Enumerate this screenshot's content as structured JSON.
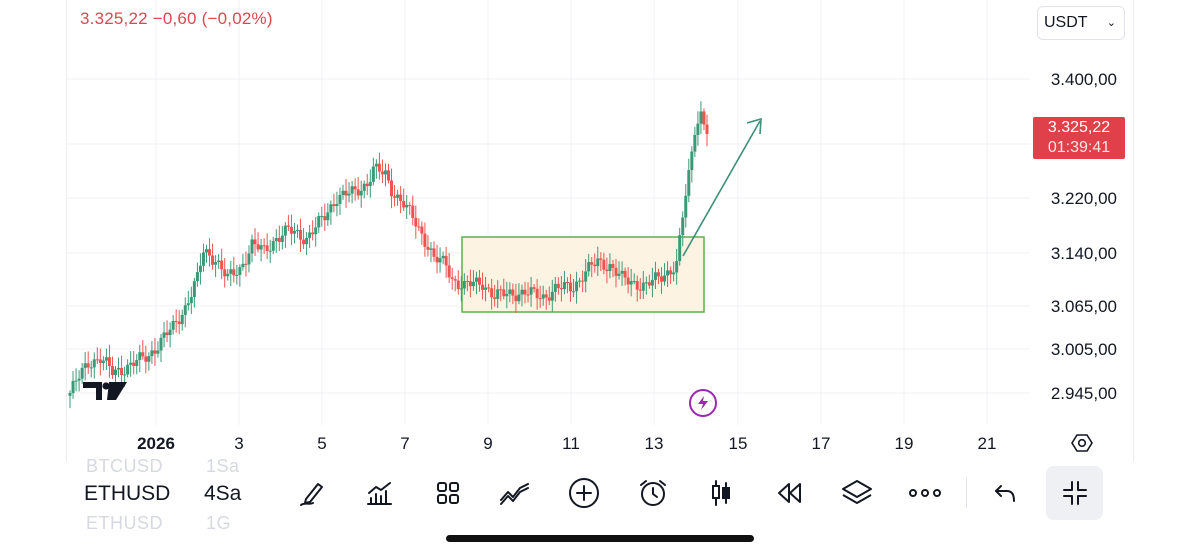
{
  "header": {
    "price_readout": "3.325,22  −0,60 (−0,02%)",
    "currency": "USDT"
  },
  "price_tag": {
    "price": "3.325,22",
    "countdown": "01:39:41"
  },
  "colors": {
    "up": "#26a69a",
    "down": "#ef5350",
    "up_dark": "#3a9a78",
    "box_fill": "#fdf3e3",
    "box_stroke": "#5cae52",
    "arrow": "#3f8f7a",
    "tag": "#e0404a"
  },
  "chart_data": {
    "type": "candlestick",
    "symbol": "ETHUSD",
    "interval": "4Sa",
    "y_ticks": [
      "3.400,00",
      "3.220,00",
      "3.140,00",
      "3.065,00",
      "3.005,00",
      "2.945,00"
    ],
    "x_ticks": [
      "2026",
      "3",
      "5",
      "7",
      "9",
      "11",
      "13",
      "15",
      "17",
      "19",
      "21"
    ],
    "last_price": 3325.22,
    "annotations": [
      "consolidation-box",
      "up-arrow"
    ]
  },
  "toolbar": {
    "symbol": "ETHUSD",
    "interval": "4Sa",
    "ghost_above_symbol": "BTCUSD",
    "ghost_above_interval": "1Sa",
    "ghost_below_symbol": "ETHUSD",
    "ghost_below_interval": "1G",
    "icons": [
      "drawing-pen-icon",
      "indicators-icon",
      "layout-grid-icon",
      "patterns-icon",
      "add-icon",
      "alarm-icon",
      "candles-icon",
      "replay-icon",
      "layers-icon",
      "more-icon",
      "undo-icon",
      "collapse-icon"
    ]
  },
  "watermark": "TV"
}
